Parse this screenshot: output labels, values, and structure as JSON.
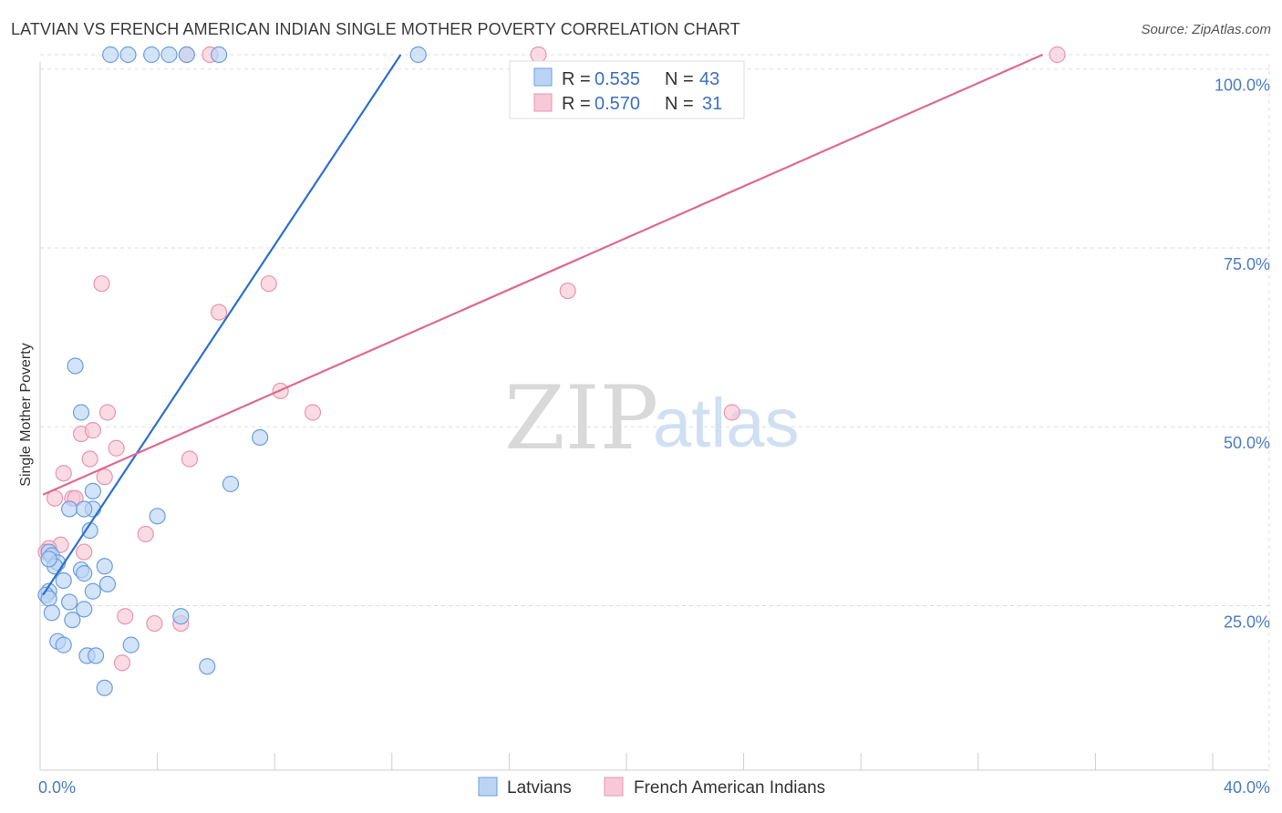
{
  "title": "LATVIAN VS FRENCH AMERICAN INDIAN SINGLE MOTHER POVERTY CORRELATION CHART",
  "source": "Source: ZipAtlas.com",
  "watermark": {
    "zip": "ZIP",
    "atlas": "atlas"
  },
  "legend": {
    "latvians": {
      "r_label": "R = ",
      "r_value": "0.535",
      "n_label": "N = ",
      "n_value": "43"
    },
    "french": {
      "r_label": "R = ",
      "r_value": "0.570",
      "n_label": "N = ",
      "n_value": "31"
    }
  },
  "colors": {
    "latvians_fill": "#bcd4f4",
    "latvians_stroke": "#6b9ee0",
    "latvians_line": "#2d6fcc",
    "french_fill": "#f8c8d6",
    "french_stroke": "#e994b0",
    "french_line": "#e06890",
    "grid": "#dddddd",
    "axis_label": "#4a7cc7"
  },
  "chart_data": {
    "type": "scatter",
    "title": "LATVIAN VS FRENCH AMERICAN INDIAN SINGLE MOTHER POVERTY CORRELATION CHART",
    "xlabel": "",
    "ylabel": "Single Mother Poverty",
    "xlim": [
      0,
      40
    ],
    "ylim": [
      2,
      102
    ],
    "x_tick_labels": [
      "0.0%",
      "40.0%"
    ],
    "y_ticks": [
      25,
      50,
      75,
      100
    ],
    "y_tick_labels": [
      "25.0%",
      "50.0%",
      "75.0%",
      "100.0%"
    ],
    "grid": true,
    "legend_position": "top-center",
    "series": [
      {
        "name": "Latvians",
        "r": 0.535,
        "n": 43,
        "trend": {
          "x": [
            0.1,
            12.3
          ],
          "y": [
            26.5,
            102
          ]
        },
        "points": [
          [
            2.4,
            102
          ],
          [
            3.0,
            102
          ],
          [
            3.8,
            102
          ],
          [
            4.4,
            102
          ],
          [
            5.0,
            102
          ],
          [
            6.1,
            102
          ],
          [
            12.9,
            102
          ],
          [
            1.2,
            58.5
          ],
          [
            1.4,
            52
          ],
          [
            7.5,
            48.5
          ],
          [
            6.5,
            42
          ],
          [
            1.8,
            41
          ],
          [
            1.8,
            38.5
          ],
          [
            1.0,
            38.5
          ],
          [
            1.5,
            38.5
          ],
          [
            4.0,
            37.5
          ],
          [
            1.7,
            35.5
          ],
          [
            0.3,
            32.5
          ],
          [
            0.4,
            32
          ],
          [
            0.6,
            31
          ],
          [
            0.5,
            30.5
          ],
          [
            1.4,
            30
          ],
          [
            2.2,
            30.5
          ],
          [
            1.5,
            29.5
          ],
          [
            0.8,
            28.5
          ],
          [
            2.3,
            28
          ],
          [
            0.3,
            27
          ],
          [
            0.2,
            26.5
          ],
          [
            0.3,
            26
          ],
          [
            1.8,
            27
          ],
          [
            1.0,
            25.5
          ],
          [
            1.5,
            24.5
          ],
          [
            0.4,
            24
          ],
          [
            1.1,
            23
          ],
          [
            4.8,
            23.5
          ],
          [
            0.6,
            20
          ],
          [
            0.8,
            19.5
          ],
          [
            3.1,
            19.5
          ],
          [
            1.6,
            18
          ],
          [
            1.9,
            18
          ],
          [
            5.7,
            16.5
          ],
          [
            2.2,
            13.5
          ],
          [
            0.3,
            31.5
          ]
        ]
      },
      {
        "name": "French American Indians",
        "r": 0.57,
        "n": 31,
        "trend": {
          "x": [
            0.1,
            34.2
          ],
          "y": [
            40.5,
            102
          ]
        },
        "points": [
          [
            5.0,
            102
          ],
          [
            5.8,
            102
          ],
          [
            17.0,
            102
          ],
          [
            34.7,
            102
          ],
          [
            2.1,
            70
          ],
          [
            7.8,
            70
          ],
          [
            18.0,
            69
          ],
          [
            6.1,
            66
          ],
          [
            8.2,
            55
          ],
          [
            9.3,
            52
          ],
          [
            2.3,
            52
          ],
          [
            23.6,
            52
          ],
          [
            1.4,
            49
          ],
          [
            1.8,
            49.5
          ],
          [
            2.6,
            47
          ],
          [
            1.7,
            45.5
          ],
          [
            5.1,
            45.5
          ],
          [
            0.8,
            43.5
          ],
          [
            2.2,
            43
          ],
          [
            1.1,
            40
          ],
          [
            1.2,
            40
          ],
          [
            0.5,
            40
          ],
          [
            3.6,
            35
          ],
          [
            0.7,
            33.5
          ],
          [
            1.5,
            32.5
          ],
          [
            0.3,
            33
          ],
          [
            0.2,
            32.5
          ],
          [
            2.9,
            23.5
          ],
          [
            3.9,
            22.5
          ],
          [
            4.8,
            22.5
          ],
          [
            2.8,
            17
          ]
        ]
      }
    ]
  }
}
